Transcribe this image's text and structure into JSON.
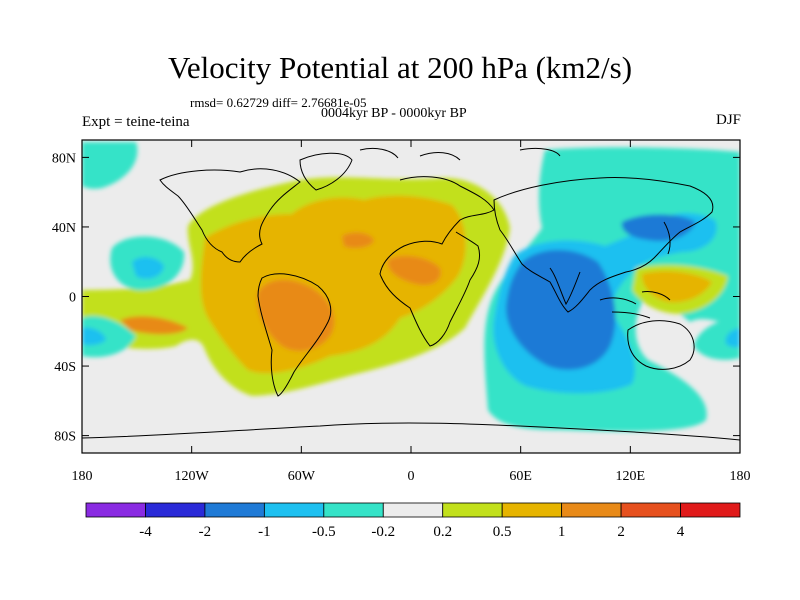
{
  "title": "Velocity Potential at 200 hPa (km2/s)",
  "stats": "rmsd= 0.62729 diff= 2.76681e-05",
  "period": "0004kyr BP - 0000kyr BP",
  "expt_label": "Expt = teine-teina",
  "season": "DJF",
  "lat_ticks": [
    {
      "label": "80N",
      "lat": 80
    },
    {
      "label": "40N",
      "lat": 40
    },
    {
      "label": "0",
      "lat": 0
    },
    {
      "label": "40S",
      "lat": -40
    },
    {
      "label": "80S",
      "lat": -80
    }
  ],
  "lon_ticks": [
    {
      "label": "180",
      "lon": -180
    },
    {
      "label": "120W",
      "lon": -120
    },
    {
      "label": "60W",
      "lon": -60
    },
    {
      "label": "0",
      "lon": 0
    },
    {
      "label": "60E",
      "lon": 60
    },
    {
      "label": "120E",
      "lon": 120
    },
    {
      "label": "180",
      "lon": 180
    }
  ],
  "colorbar": {
    "colors": [
      "#8a2be2",
      "#2a2ad8",
      "#1f7ad6",
      "#1ec0f0",
      "#35e3c8",
      "#ececec",
      "#c2e01c",
      "#e6b400",
      "#e88a18",
      "#e6501e",
      "#e01a1a"
    ],
    "labels": [
      "-4",
      "-2",
      "-1",
      "-0.5",
      "-0.2",
      "0.2",
      "0.5",
      "1",
      "2",
      "4"
    ]
  }
}
